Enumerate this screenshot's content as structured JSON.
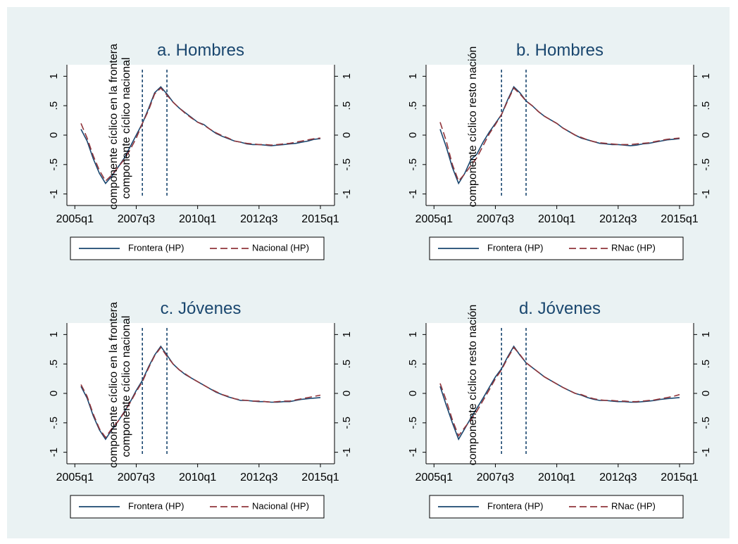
{
  "chart_data": [
    {
      "type": "line",
      "title": "a. Hombres",
      "ylabel_left": "componente cíclico en la frontera",
      "ylabel_right": "componente cíclico nacional",
      "x": [
        "2005q1",
        "2005q2",
        "2005q3",
        "2005q4",
        "2006q1",
        "2006q2",
        "2006q3",
        "2006q4",
        "2007q1",
        "2007q2",
        "2007q3",
        "2007q4",
        "2008q1",
        "2008q2",
        "2008q3",
        "2008q4",
        "2009q1",
        "2009q2",
        "2009q3",
        "2009q4",
        "2010q1",
        "2010q2",
        "2010q3",
        "2010q4",
        "2011q1",
        "2011q2",
        "2011q3",
        "2011q4",
        "2012q1",
        "2012q2",
        "2012q3",
        "2012q4",
        "2013q1",
        "2013q2",
        "2013q3",
        "2013q4",
        "2014q1",
        "2014q2",
        "2014q3",
        "2014q4",
        "2015q1"
      ],
      "x_ticks": [
        "2005q1",
        "2007q3",
        "2010q1",
        "2012q3",
        "2015q1"
      ],
      "y_ticks": [
        "1",
        ".5",
        "0",
        "-.5",
        "-1"
      ],
      "y_tick_values": [
        1,
        0.5,
        0,
        -0.5,
        -1
      ],
      "ylim": [
        -1.1,
        1.1
      ],
      "vlines": [
        "2007q4",
        "2008q4"
      ],
      "series": [
        {
          "name": "Frontera (HP)",
          "values": [
            null,
            0.1,
            -0.1,
            -0.4,
            -0.65,
            -0.82,
            -0.7,
            -0.55,
            -0.4,
            -0.2,
            0.0,
            0.2,
            0.45,
            0.72,
            0.82,
            0.7,
            0.56,
            0.46,
            0.38,
            0.3,
            0.22,
            0.18,
            0.1,
            0.03,
            -0.02,
            -0.06,
            -0.1,
            -0.12,
            -0.15,
            -0.16,
            -0.16,
            -0.17,
            -0.18,
            -0.17,
            -0.16,
            -0.15,
            -0.14,
            -0.12,
            -0.1,
            -0.07,
            -0.06
          ]
        },
        {
          "name": "Nacional (HP)",
          "values": [
            null,
            0.2,
            -0.05,
            -0.35,
            -0.6,
            -0.78,
            -0.68,
            -0.55,
            -0.42,
            -0.25,
            -0.05,
            0.2,
            0.42,
            0.7,
            0.8,
            0.68,
            0.56,
            0.46,
            0.37,
            0.29,
            0.22,
            0.17,
            0.1,
            0.04,
            -0.01,
            -0.05,
            -0.1,
            -0.12,
            -0.14,
            -0.15,
            -0.16,
            -0.16,
            -0.17,
            -0.16,
            -0.15,
            -0.14,
            -0.12,
            -0.1,
            -0.08,
            -0.06,
            -0.05
          ]
        }
      ],
      "legend": "bottom"
    },
    {
      "type": "line",
      "title": "b. Hombres",
      "ylabel_left": "componente cíclico resto nación",
      "ylabel_right": "",
      "x": [
        "2005q1",
        "2005q2",
        "2005q3",
        "2005q4",
        "2006q1",
        "2006q2",
        "2006q3",
        "2006q4",
        "2007q1",
        "2007q2",
        "2007q3",
        "2007q4",
        "2008q1",
        "2008q2",
        "2008q3",
        "2008q4",
        "2009q1",
        "2009q2",
        "2009q3",
        "2009q4",
        "2010q1",
        "2010q2",
        "2010q3",
        "2010q4",
        "2011q1",
        "2011q2",
        "2011q3",
        "2011q4",
        "2012q1",
        "2012q2",
        "2012q3",
        "2012q4",
        "2013q1",
        "2013q2",
        "2013q3",
        "2013q4",
        "2014q1",
        "2014q2",
        "2014q3",
        "2014q4",
        "2015q1"
      ],
      "x_ticks": [
        "2005q1",
        "2007q3",
        "2010q1",
        "2012q3",
        "2015q1"
      ],
      "y_ticks": [
        "1",
        ".5",
        "0",
        "-.5",
        "-1"
      ],
      "y_tick_values": [
        1,
        0.5,
        0,
        -0.5,
        -1
      ],
      "ylim": [
        -1.1,
        1.1
      ],
      "vlines": [
        "2007q4",
        "2008q4"
      ],
      "series": [
        {
          "name": "Frontera (HP)",
          "values": [
            null,
            0.1,
            -0.2,
            -0.55,
            -0.82,
            -0.65,
            -0.42,
            -0.32,
            -0.12,
            0.05,
            0.2,
            0.35,
            0.6,
            0.82,
            0.72,
            0.58,
            0.5,
            0.4,
            0.32,
            0.26,
            0.2,
            0.12,
            0.06,
            0.0,
            -0.05,
            -0.08,
            -0.11,
            -0.14,
            -0.15,
            -0.16,
            -0.16,
            -0.17,
            -0.18,
            -0.17,
            -0.15,
            -0.14,
            -0.12,
            -0.1,
            -0.08,
            -0.07,
            -0.06
          ]
        },
        {
          "name": "RNac (HP)",
          "values": [
            null,
            0.22,
            -0.1,
            -0.5,
            -0.78,
            -0.66,
            -0.52,
            -0.38,
            -0.18,
            0.02,
            0.18,
            0.35,
            0.58,
            0.8,
            0.7,
            0.58,
            0.5,
            0.4,
            0.32,
            0.26,
            0.2,
            0.12,
            0.06,
            0.0,
            -0.04,
            -0.08,
            -0.11,
            -0.13,
            -0.14,
            -0.15,
            -0.16,
            -0.16,
            -0.16,
            -0.15,
            -0.14,
            -0.13,
            -0.11,
            -0.09,
            -0.07,
            -0.06,
            -0.05
          ]
        }
      ],
      "legend": "bottom"
    },
    {
      "type": "line",
      "title": "c. Jóvenes",
      "ylabel_left": "componente cíclico en la frontera",
      "ylabel_right": "componente cíclico nacional",
      "x": [
        "2005q1",
        "2005q2",
        "2005q3",
        "2005q4",
        "2006q1",
        "2006q2",
        "2006q3",
        "2006q4",
        "2007q1",
        "2007q2",
        "2007q3",
        "2007q4",
        "2008q1",
        "2008q2",
        "2008q3",
        "2008q4",
        "2009q1",
        "2009q2",
        "2009q3",
        "2009q4",
        "2010q1",
        "2010q2",
        "2010q3",
        "2010q4",
        "2011q1",
        "2011q2",
        "2011q3",
        "2011q4",
        "2012q1",
        "2012q2",
        "2012q3",
        "2012q4",
        "2013q1",
        "2013q2",
        "2013q3",
        "2013q4",
        "2014q1",
        "2014q2",
        "2014q3",
        "2014q4",
        "2015q1"
      ],
      "x_ticks": [
        "2005q1",
        "2007q3",
        "2010q1",
        "2012q3",
        "2015q1"
      ],
      "y_ticks": [
        "1",
        ".5",
        "0",
        "-.5",
        "-1"
      ],
      "y_tick_values": [
        1,
        0.5,
        0,
        -0.5,
        -1
      ],
      "ylim": [
        -1.1,
        1.1
      ],
      "vlines": [
        "2007q4",
        "2008q4"
      ],
      "series": [
        {
          "name": "Frontera (HP)",
          "values": [
            null,
            0.12,
            -0.08,
            -0.38,
            -0.62,
            -0.78,
            -0.62,
            -0.48,
            -0.32,
            -0.15,
            0.05,
            0.22,
            0.45,
            0.65,
            0.8,
            0.65,
            0.5,
            0.4,
            0.32,
            0.26,
            0.2,
            0.14,
            0.08,
            0.02,
            -0.02,
            -0.06,
            -0.09,
            -0.12,
            -0.12,
            -0.13,
            -0.14,
            -0.14,
            -0.15,
            -0.15,
            -0.14,
            -0.14,
            -0.12,
            -0.1,
            -0.09,
            -0.08,
            -0.07
          ]
        },
        {
          "name": "Nacional (HP)",
          "values": [
            null,
            0.15,
            -0.05,
            -0.35,
            -0.6,
            -0.75,
            -0.6,
            -0.48,
            -0.33,
            -0.16,
            0.03,
            0.2,
            0.43,
            0.64,
            0.78,
            0.63,
            0.5,
            0.4,
            0.33,
            0.26,
            0.2,
            0.14,
            0.08,
            0.03,
            -0.02,
            -0.05,
            -0.09,
            -0.11,
            -0.12,
            -0.13,
            -0.13,
            -0.14,
            -0.15,
            -0.14,
            -0.13,
            -0.13,
            -0.11,
            -0.09,
            -0.07,
            -0.05,
            -0.03
          ]
        }
      ],
      "legend": "bottom"
    },
    {
      "type": "line",
      "title": "d. Jóvenes",
      "ylabel_left": "componente cíclico resto nación",
      "ylabel_right": "",
      "x": [
        "2005q1",
        "2005q2",
        "2005q3",
        "2005q4",
        "2006q1",
        "2006q2",
        "2006q3",
        "2006q4",
        "2007q1",
        "2007q2",
        "2007q3",
        "2007q4",
        "2008q1",
        "2008q2",
        "2008q3",
        "2008q4",
        "2009q1",
        "2009q2",
        "2009q3",
        "2009q4",
        "2010q1",
        "2010q2",
        "2010q3",
        "2010q4",
        "2011q1",
        "2011q2",
        "2011q3",
        "2011q4",
        "2012q1",
        "2012q2",
        "2012q3",
        "2012q4",
        "2013q1",
        "2013q2",
        "2013q3",
        "2013q4",
        "2014q1",
        "2014q2",
        "2014q3",
        "2014q4",
        "2015q1"
      ],
      "x_ticks": [
        "2005q1",
        "2007q3",
        "2010q1",
        "2012q3",
        "2015q1"
      ],
      "y_ticks": [
        "1",
        ".5",
        "0",
        "-.5",
        "-1"
      ],
      "y_tick_values": [
        1,
        0.5,
        0,
        -0.5,
        -1
      ],
      "ylim": [
        -1.1,
        1.1
      ],
      "vlines": [
        "2007q4",
        "2008q4"
      ],
      "series": [
        {
          "name": "Frontera (HP)",
          "values": [
            null,
            0.12,
            -0.2,
            -0.5,
            -0.78,
            -0.6,
            -0.42,
            -0.25,
            -0.08,
            0.1,
            0.28,
            0.42,
            0.62,
            0.8,
            0.65,
            0.52,
            0.44,
            0.36,
            0.28,
            0.22,
            0.16,
            0.1,
            0.05,
            0.0,
            -0.03,
            -0.07,
            -0.1,
            -0.12,
            -0.12,
            -0.13,
            -0.14,
            -0.14,
            -0.15,
            -0.15,
            -0.14,
            -0.13,
            -0.12,
            -0.1,
            -0.09,
            -0.08,
            -0.07
          ]
        },
        {
          "name": "RNac (HP)",
          "values": [
            null,
            0.17,
            -0.12,
            -0.45,
            -0.72,
            -0.58,
            -0.45,
            -0.3,
            -0.12,
            0.06,
            0.25,
            0.4,
            0.6,
            0.78,
            0.66,
            0.52,
            0.44,
            0.36,
            0.28,
            0.22,
            0.16,
            0.1,
            0.05,
            0.0,
            -0.02,
            -0.06,
            -0.09,
            -0.11,
            -0.12,
            -0.12,
            -0.13,
            -0.13,
            -0.14,
            -0.14,
            -0.13,
            -0.12,
            -0.11,
            -0.09,
            -0.07,
            -0.05,
            -0.02
          ]
        }
      ],
      "legend": "bottom"
    }
  ],
  "colors": {
    "outer_background": "#eaf2f3",
    "plot_background": "#ffffff",
    "series_1": "#1a476f",
    "series_2": "#90353b",
    "vline": "#1a476f",
    "axis": "#000000",
    "title": "#1a476f"
  }
}
